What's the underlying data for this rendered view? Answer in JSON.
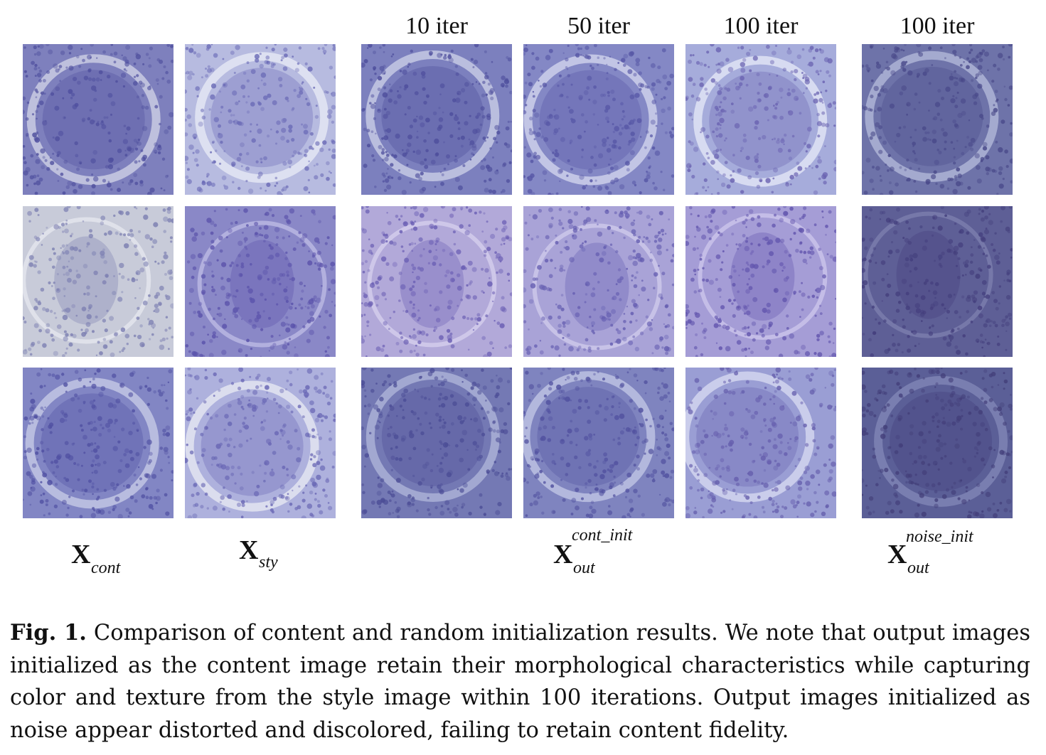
{
  "figure": {
    "column_headers": [
      "10 iter",
      "50 iter",
      "100 iter",
      "100 iter"
    ],
    "labels": {
      "cont": {
        "base": "X",
        "sub": "cont"
      },
      "sty": {
        "base": "X",
        "sub": "sty"
      },
      "cont_init": {
        "base": "X",
        "sub": "out",
        "sup": "cont_init"
      },
      "noise_init": {
        "base": "X",
        "sub": "out",
        "sup": "noise_init"
      }
    },
    "tiles": [
      {
        "row": 0,
        "col": 0,
        "bg": "#7e80bd",
        "ring": "#c9cbe3",
        "cell": "#4f4f9e"
      },
      {
        "row": 0,
        "col": 1,
        "bg": "#b7bbe0",
        "ring": "#e4e6f3",
        "cell": "#6c6cb7"
      },
      {
        "row": 0,
        "col": 2,
        "bg": "#7c80be",
        "ring": "#c6c9e4",
        "cell": "#4e4e9c"
      },
      {
        "row": 0,
        "col": 3,
        "bg": "#8488c5",
        "ring": "#cdd0ea",
        "cell": "#5757a6"
      },
      {
        "row": 0,
        "col": 4,
        "bg": "#a6acdb",
        "ring": "#dfe3f4",
        "cell": "#6b64b2"
      },
      {
        "row": 0,
        "col": 5,
        "bg": "#6e73a9",
        "ring": "#aeb4d6",
        "cell": "#4a4a8a"
      },
      {
        "row": 1,
        "col": 0,
        "bg": "#c8cbd9",
        "ring": "#e3e5ec",
        "cell": "#7d80b2"
      },
      {
        "row": 1,
        "col": 1,
        "bg": "#8a88c7",
        "ring": "#b9b7e2",
        "cell": "#5b53ab"
      },
      {
        "row": 1,
        "col": 2,
        "bg": "#b2a9d9",
        "ring": "#d2cceb",
        "cell": "#6b5fb4"
      },
      {
        "row": 1,
        "col": 3,
        "bg": "#a9a3d7",
        "ring": "#ccc8ea",
        "cell": "#655eb1"
      },
      {
        "row": 1,
        "col": 4,
        "bg": "#a59dd6",
        "ring": "#c9c3ea",
        "cell": "#6356ae"
      },
      {
        "row": 1,
        "col": 5,
        "bg": "#5e5f96",
        "ring": "#7a7cad",
        "cell": "#443f7d"
      },
      {
        "row": 2,
        "col": 0,
        "bg": "#8286c4",
        "ring": "#c2c6e4",
        "cell": "#5050a2"
      },
      {
        "row": 2,
        "col": 1,
        "bg": "#aeb1dd",
        "ring": "#e3e5f1",
        "cell": "#6a68b5"
      },
      {
        "row": 2,
        "col": 2,
        "bg": "#7479b4",
        "ring": "#aab0d6",
        "cell": "#4c4d96"
      },
      {
        "row": 2,
        "col": 3,
        "bg": "#7f84bf",
        "ring": "#bcc1e2",
        "cell": "#5252a0"
      },
      {
        "row": 2,
        "col": 4,
        "bg": "#9a9ed4",
        "ring": "#d2d5ee",
        "cell": "#6760ae"
      },
      {
        "row": 2,
        "col": 5,
        "bg": "#5b5f97",
        "ring": "#7f84b4",
        "cell": "#433f7a"
      }
    ],
    "caption": {
      "label": "Fig. 1.",
      "text": "Comparison of content and random initialization results. We note that output images initialized as the content image retain their morphological characteristics while capturing color and texture from the style image within 100 iterations. Output images initialized as noise appear distorted and discolored, failing to retain content fidelity."
    }
  }
}
